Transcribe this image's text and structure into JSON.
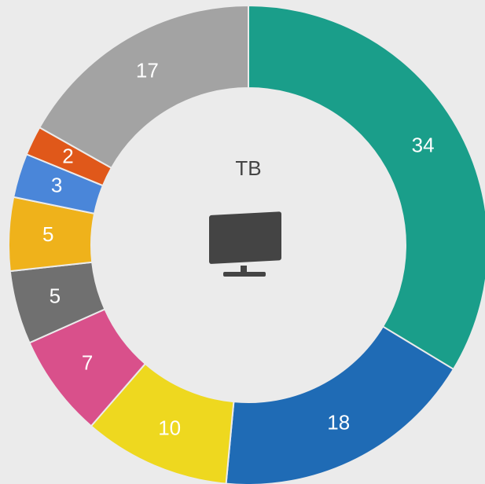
{
  "chart_data": {
    "type": "donut",
    "title": "TB",
    "values": [
      34,
      18,
      10,
      7,
      5,
      5,
      3,
      2,
      17
    ],
    "colors": [
      "#1a9e8a",
      "#1f6bb5",
      "#eed81f",
      "#d9508b",
      "#707070",
      "#efb21b",
      "#4a86d9",
      "#e0581a",
      "#a3a3a3"
    ]
  }
}
